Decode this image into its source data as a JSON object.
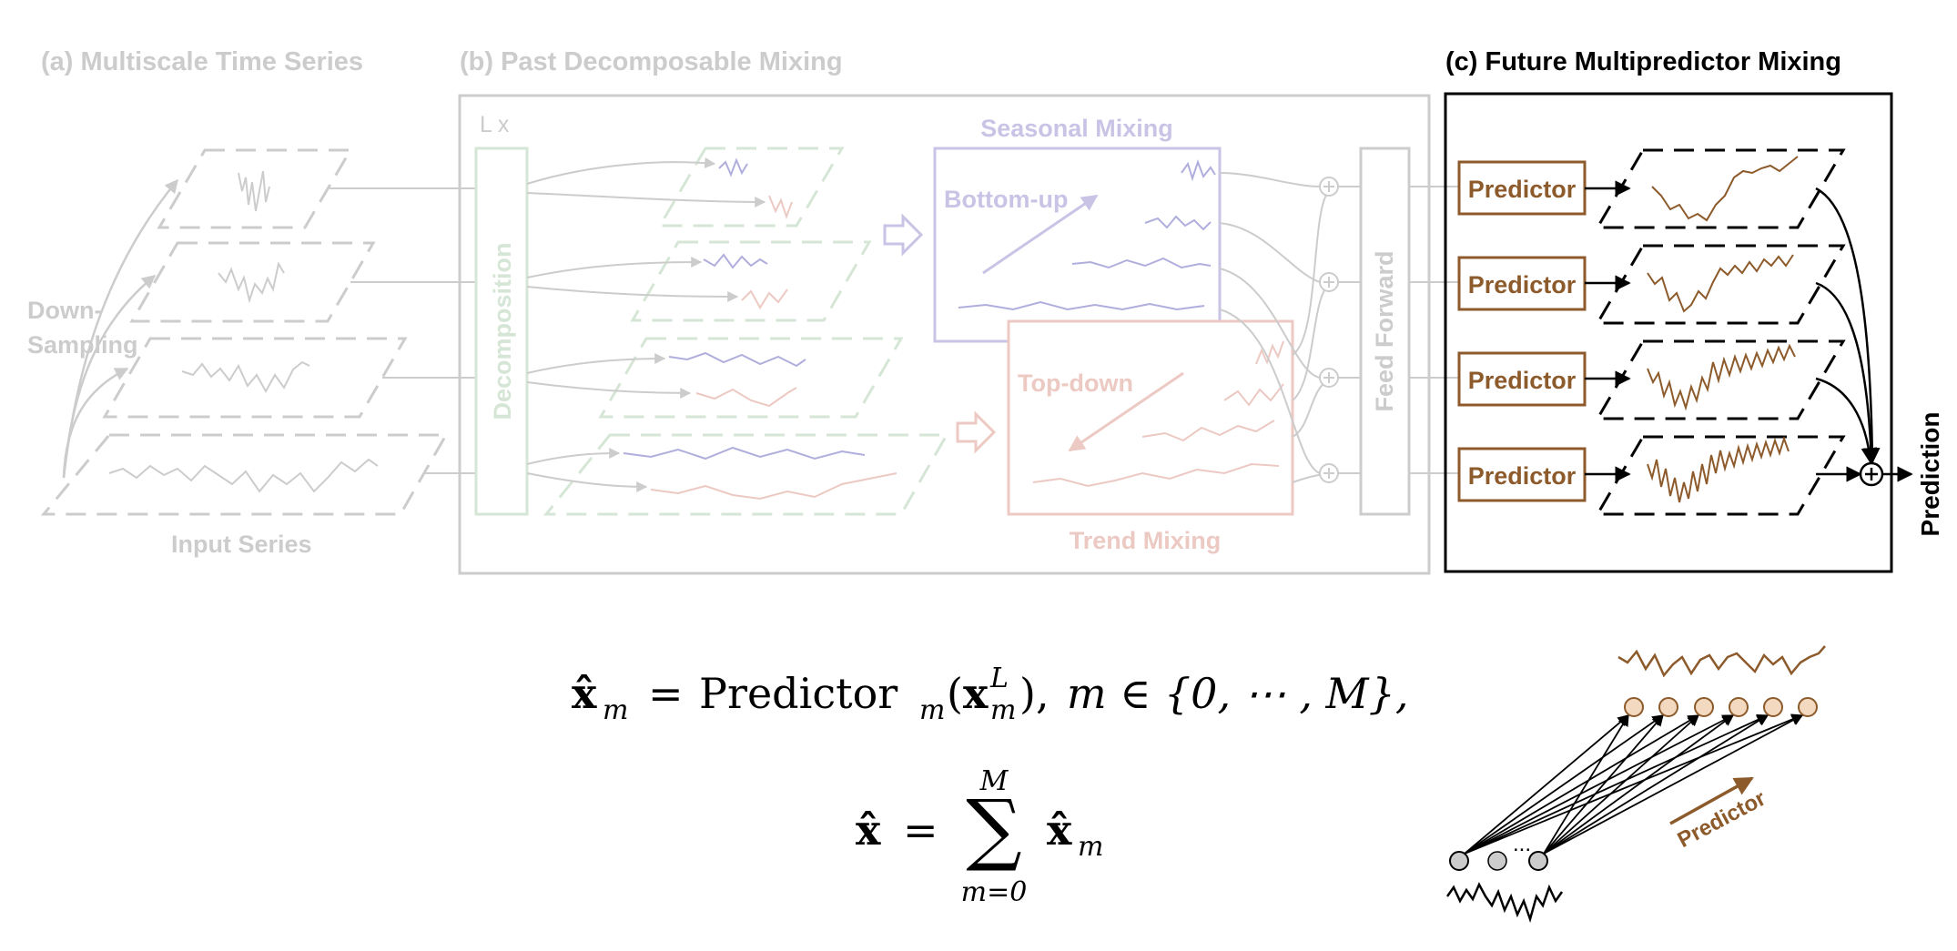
{
  "sections": {
    "a_title": "(a) Multiscale Time Series",
    "b_title": "(b) Past Decomposable Mixing",
    "c_title": "(c) Future Multipredictor Mixing"
  },
  "labels": {
    "down_sampling_line1": "Down-",
    "down_sampling_line2": "Sampling",
    "input_series": "Input Series",
    "layers": "L x",
    "decomposition": "Decomposition",
    "seasonal_mixing": "Seasonal Mixing",
    "bottom_up": "Bottom-up",
    "top_down": "Top-down",
    "trend_mixing": "Trend Mixing",
    "feed_forward": "Feed Forward",
    "predictor": "Predictor",
    "prediction": "Prediction",
    "predictor_arrow": "Predictor",
    "ellipsis": "..."
  },
  "predictors": [
    "Predictor",
    "Predictor",
    "Predictor",
    "Predictor"
  ],
  "equations": {
    "eq1_lhs": "x̂",
    "eq1_lhs_sub": "m",
    "eq1_eq": "=",
    "eq1_fn": "Predictor",
    "eq1_fn_sub": "m",
    "eq1_arg_open": "(",
    "eq1_arg": "x",
    "eq1_arg_sup": "L",
    "eq1_arg_sub": "m",
    "eq1_arg_close": "),",
    "eq1_cond": "m ∈ {0, ⋯ , M},",
    "eq2_lhs": "x̂",
    "eq2_eq": "=",
    "eq2_sum": "∑",
    "eq2_sum_top": "M",
    "eq2_sum_bottom": "m=0",
    "eq2_term": "x̂",
    "eq2_term_sub": "m"
  },
  "colors": {
    "faded_gray": "#cccccc",
    "faded_green": "#d6e6d6",
    "faded_purple": "#c9c4e6",
    "faded_red": "#ecc9c2",
    "faded_blue": "#b0aedc",
    "brown": "#8c5a2b",
    "black": "#000000"
  }
}
